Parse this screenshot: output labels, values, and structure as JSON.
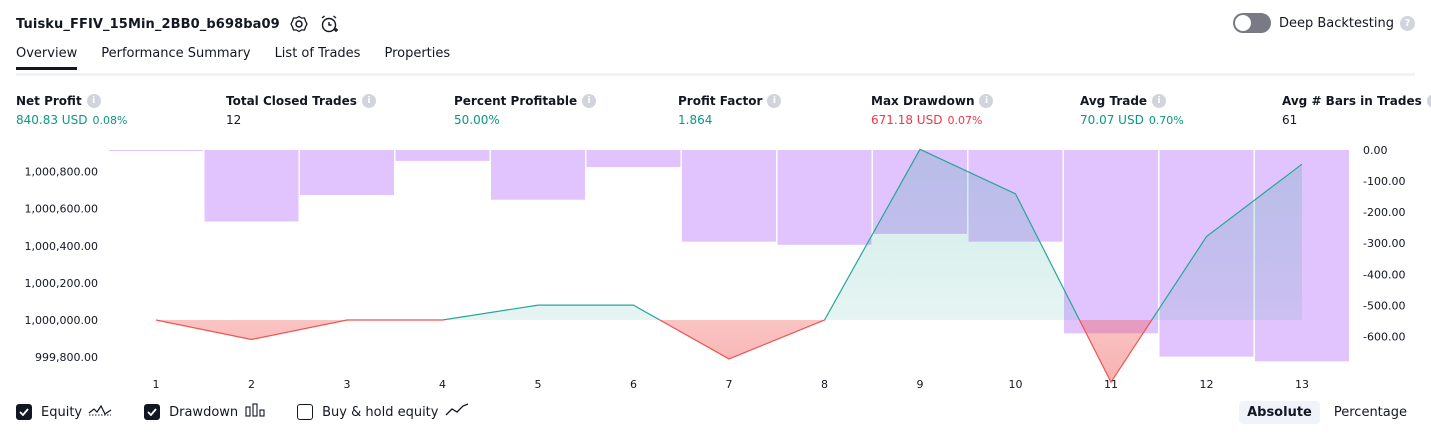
{
  "header": {
    "strategy_name": "Tuisku_FFIV_15Min_2BB0_b698ba09",
    "settings_icon": "gear-icon",
    "alert_icon": "alarm-clock-icon",
    "deep_backtesting_label": "Deep Backtesting",
    "deep_backtesting_enabled": false
  },
  "tabs": [
    {
      "label": "Overview",
      "active": true
    },
    {
      "label": "Performance Summary",
      "active": false
    },
    {
      "label": "List of Trades",
      "active": false
    },
    {
      "label": "Properties",
      "active": false
    }
  ],
  "metrics": [
    {
      "label": "Net Profit",
      "value": "840.83 USD",
      "pct": "0.08%"
    },
    {
      "label": "Total Closed Trades",
      "value": "12"
    },
    {
      "label": "Percent Profitable",
      "value": "50.00%"
    },
    {
      "label": "Profit Factor",
      "value": "1.864"
    },
    {
      "label": "Max Drawdown",
      "value": "671.18 USD",
      "pct": "0.07%"
    },
    {
      "label": "Avg Trade",
      "value": "70.07 USD",
      "pct": "0.70%"
    },
    {
      "label": "Avg # Bars in Trades",
      "value": "61"
    }
  ],
  "colors": {
    "positive": "#089981",
    "negative": "#f23645",
    "drawdown_bar": "#e1c3fd",
    "equity_line_pos": "#26a69a",
    "equity_line_neg": "#ef5350"
  },
  "chart_data": {
    "type": "area",
    "x": [
      1,
      2,
      3,
      4,
      5,
      6,
      7,
      8,
      9,
      10,
      11,
      12,
      13
    ],
    "series": [
      {
        "name": "Equity",
        "axis": "left",
        "values": [
          1000000,
          999895,
          1000000,
          1000000,
          1000080,
          1000080,
          999790,
          1000000,
          1000920,
          1000680,
          999665,
          1000450,
          1000840
        ]
      },
      {
        "name": "Drawdown",
        "axis": "right",
        "values": [
          0,
          -230,
          -145,
          -35,
          -160,
          -55,
          -295,
          -305,
          -270,
          -295,
          -590,
          -665,
          -680
        ]
      }
    ],
    "left_ticks": [
      "1,000,800.00",
      "1,000,600.00",
      "1,000,400.00",
      "1,000,200.00",
      "1,000,000.00",
      "999,800.00"
    ],
    "left_tick_values": [
      1000800,
      1000600,
      1000400,
      1000200,
      1000000,
      999800
    ],
    "right_ticks": [
      "0.00",
      "-100.00",
      "-200.00",
      "-300.00",
      "-400.00",
      "-500.00",
      "-600.00"
    ],
    "right_tick_values": [
      0,
      -100,
      -200,
      -300,
      -400,
      -500,
      -600
    ],
    "x_ticks": [
      "1",
      "2",
      "3",
      "4",
      "5",
      "6",
      "7",
      "8",
      "9",
      "10",
      "11",
      "12",
      "13"
    ],
    "baseline": 1000000
  },
  "legend": {
    "equity_label": "Equity",
    "equity_checked": true,
    "drawdown_label": "Drawdown",
    "drawdown_checked": true,
    "buyhold_label": "Buy & hold equity",
    "buyhold_checked": false
  },
  "mode": {
    "absolute_label": "Absolute",
    "percentage_label": "Percentage",
    "selected": "Absolute"
  }
}
